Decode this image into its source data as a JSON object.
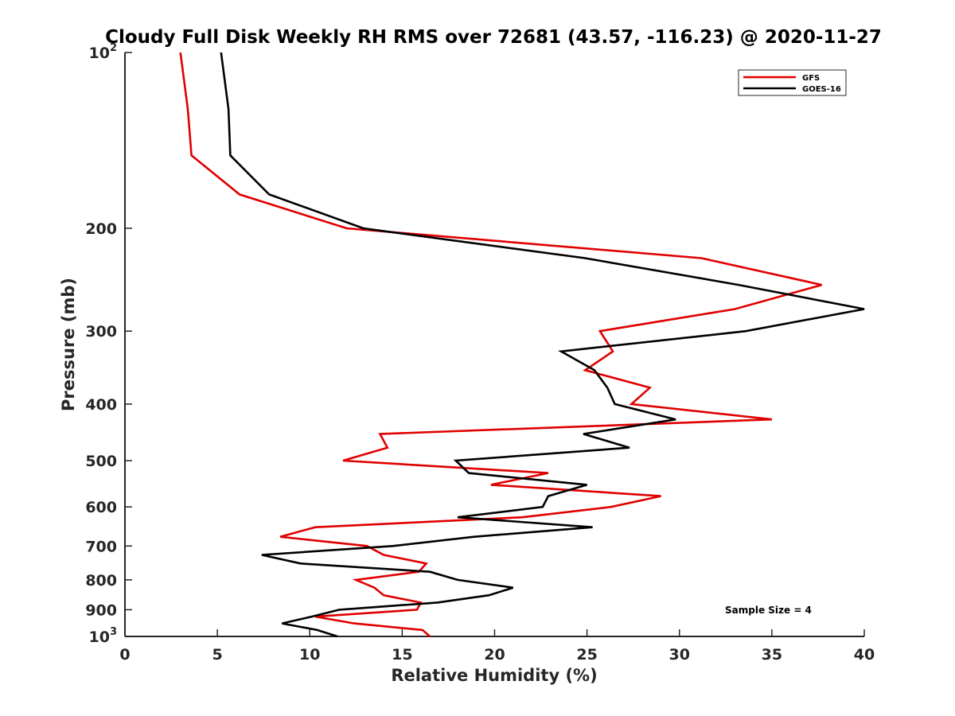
{
  "chart_data": {
    "type": "line",
    "title": "Cloudy Full Disk Weekly RH RMS over 72681 (43.57, -116.23) @ 2020-11-27",
    "xlabel": "Relative Humidity (%)",
    "ylabel": "Pressure (mb)",
    "xlim": [
      0,
      40
    ],
    "ylim": [
      100,
      1000
    ],
    "y_scale": "log",
    "y_reversed": true,
    "grid": false,
    "legend_position": "top-right",
    "x_ticks": [
      0,
      5,
      10,
      15,
      20,
      25,
      30,
      35,
      40
    ],
    "x_tick_labels": [
      "0",
      "5",
      "10",
      "15",
      "20",
      "25",
      "30",
      "35",
      "40"
    ],
    "y_ticks": [
      100,
      200,
      300,
      400,
      500,
      600,
      700,
      800,
      900,
      1000
    ],
    "y_tick_labels": [
      {
        "base": "10",
        "exp": "2"
      },
      {
        "base": "200",
        "exp": ""
      },
      {
        "base": "300",
        "exp": ""
      },
      {
        "base": "400",
        "exp": ""
      },
      {
        "base": "500",
        "exp": ""
      },
      {
        "base": "600",
        "exp": ""
      },
      {
        "base": "700",
        "exp": ""
      },
      {
        "base": "800",
        "exp": ""
      },
      {
        "base": "900",
        "exp": ""
      },
      {
        "base": "10",
        "exp": "3"
      }
    ],
    "annotation": "Sample Size = 4",
    "series": [
      {
        "name": "GFS",
        "color": "#e00000",
        "points": [
          {
            "x": 3.0,
            "y": 100
          },
          {
            "x": 3.4,
            "y": 125
          },
          {
            "x": 3.6,
            "y": 150
          },
          {
            "x": 6.2,
            "y": 175
          },
          {
            "x": 12.0,
            "y": 200
          },
          {
            "x": 31.2,
            "y": 225
          },
          {
            "x": 37.7,
            "y": 250
          },
          {
            "x": 33.0,
            "y": 275
          },
          {
            "x": 25.7,
            "y": 300
          },
          {
            "x": 26.4,
            "y": 325
          },
          {
            "x": 24.9,
            "y": 350
          },
          {
            "x": 28.4,
            "y": 375
          },
          {
            "x": 27.4,
            "y": 400
          },
          {
            "x": 35.0,
            "y": 425
          },
          {
            "x": 13.8,
            "y": 450
          },
          {
            "x": 14.2,
            "y": 475
          },
          {
            "x": 11.8,
            "y": 500
          },
          {
            "x": 22.9,
            "y": 525
          },
          {
            "x": 19.8,
            "y": 550
          },
          {
            "x": 29.0,
            "y": 575
          },
          {
            "x": 26.3,
            "y": 600
          },
          {
            "x": 21.5,
            "y": 625
          },
          {
            "x": 10.3,
            "y": 650
          },
          {
            "x": 8.4,
            "y": 675
          },
          {
            "x": 13.1,
            "y": 700
          },
          {
            "x": 14.0,
            "y": 725
          },
          {
            "x": 16.3,
            "y": 750
          },
          {
            "x": 15.9,
            "y": 775
          },
          {
            "x": 12.5,
            "y": 800
          },
          {
            "x": 13.5,
            "y": 825
          },
          {
            "x": 14.0,
            "y": 850
          },
          {
            "x": 16.0,
            "y": 875
          },
          {
            "x": 15.8,
            "y": 900
          },
          {
            "x": 10.3,
            "y": 925
          },
          {
            "x": 12.4,
            "y": 950
          },
          {
            "x": 16.1,
            "y": 975
          },
          {
            "x": 16.5,
            "y": 1000
          }
        ]
      },
      {
        "name": "GOES-16",
        "color": "#000000",
        "points": [
          {
            "x": 5.2,
            "y": 100
          },
          {
            "x": 5.6,
            "y": 125
          },
          {
            "x": 5.7,
            "y": 150
          },
          {
            "x": 7.8,
            "y": 175
          },
          {
            "x": 12.9,
            "y": 200
          },
          {
            "x": 24.9,
            "y": 225
          },
          {
            "x": 33.2,
            "y": 250
          },
          {
            "x": 40.0,
            "y": 275
          },
          {
            "x": 33.6,
            "y": 300
          },
          {
            "x": 23.6,
            "y": 325
          },
          {
            "x": 25.4,
            "y": 350
          },
          {
            "x": 26.1,
            "y": 375
          },
          {
            "x": 26.5,
            "y": 400
          },
          {
            "x": 29.8,
            "y": 425
          },
          {
            "x": 24.8,
            "y": 450
          },
          {
            "x": 27.3,
            "y": 475
          },
          {
            "x": 17.9,
            "y": 500
          },
          {
            "x": 18.6,
            "y": 525
          },
          {
            "x": 25.0,
            "y": 550
          },
          {
            "x": 22.9,
            "y": 575
          },
          {
            "x": 22.6,
            "y": 600
          },
          {
            "x": 18.0,
            "y": 625
          },
          {
            "x": 25.3,
            "y": 650
          },
          {
            "x": 18.9,
            "y": 675
          },
          {
            "x": 14.5,
            "y": 700
          },
          {
            "x": 7.4,
            "y": 725
          },
          {
            "x": 9.5,
            "y": 750
          },
          {
            "x": 16.5,
            "y": 775
          },
          {
            "x": 18.0,
            "y": 800
          },
          {
            "x": 21.0,
            "y": 825
          },
          {
            "x": 19.7,
            "y": 850
          },
          {
            "x": 16.9,
            "y": 875
          },
          {
            "x": 11.6,
            "y": 900
          },
          {
            "x": 10.1,
            "y": 925
          },
          {
            "x": 8.5,
            "y": 950
          },
          {
            "x": 10.4,
            "y": 975
          },
          {
            "x": 11.5,
            "y": 1000
          }
        ]
      }
    ]
  }
}
